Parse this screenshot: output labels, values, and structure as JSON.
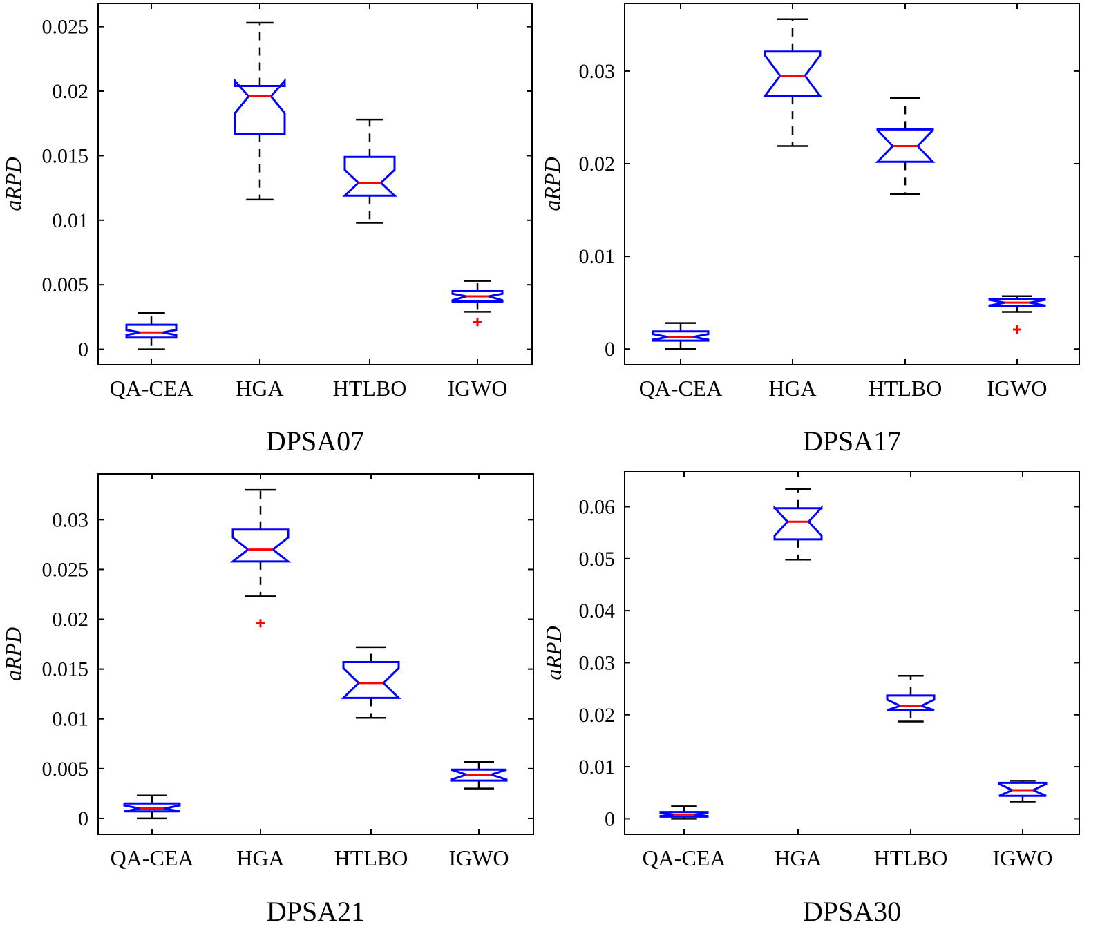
{
  "chart_data": [
    {
      "type": "boxplot",
      "title": "DPSA07",
      "ylabel": "aRPD",
      "xlabel": "",
      "ylim": [
        -0.0012,
        0.0268
      ],
      "yticks": [
        0,
        0.005,
        0.01,
        0.015,
        0.02,
        0.025
      ],
      "ytick_labels": [
        "0",
        "0.005",
        "0.01",
        "0.015",
        "0.02",
        "0.025"
      ],
      "categories": [
        "QA-CEA",
        "HGA",
        "HTLBO",
        "IGWO"
      ],
      "boxes": [
        {
          "name": "QA-CEA",
          "whisker_low": 0.0,
          "q1": 0.0009,
          "median": 0.0013,
          "q3": 0.0019,
          "whisker_high": 0.0028,
          "notch_low": 0.0011,
          "notch_high": 0.0015,
          "outliers": []
        },
        {
          "name": "HGA",
          "whisker_low": 0.0116,
          "q1": 0.0167,
          "median": 0.0196,
          "q3": 0.0204,
          "whisker_high": 0.0253,
          "notch_low": 0.0183,
          "notch_high": 0.0208,
          "outliers": []
        },
        {
          "name": "HTLBO",
          "whisker_low": 0.0098,
          "q1": 0.0119,
          "median": 0.0129,
          "q3": 0.0149,
          "whisker_high": 0.0178,
          "notch_low": 0.0119,
          "notch_high": 0.0139,
          "outliers": []
        },
        {
          "name": "IGWO",
          "whisker_low": 0.0029,
          "q1": 0.0037,
          "median": 0.0041,
          "q3": 0.0045,
          "whisker_high": 0.0053,
          "notch_low": 0.0038,
          "notch_high": 0.0043,
          "outliers": [
            0.0021
          ]
        }
      ]
    },
    {
      "type": "boxplot",
      "title": "DPSA17",
      "ylabel": "aRPD",
      "xlabel": "",
      "ylim": [
        -0.0017,
        0.0373
      ],
      "yticks": [
        0,
        0.01,
        0.02,
        0.03
      ],
      "ytick_labels": [
        "0",
        "0.01",
        "0.02",
        "0.03"
      ],
      "categories": [
        "QA-CEA",
        "HGA",
        "HTLBO",
        "IGWO"
      ],
      "boxes": [
        {
          "name": "QA-CEA",
          "whisker_low": 0.0,
          "q1": 0.0009,
          "median": 0.0013,
          "q3": 0.0019,
          "whisker_high": 0.0028,
          "notch_low": 0.001,
          "notch_high": 0.0016,
          "outliers": []
        },
        {
          "name": "HGA",
          "whisker_low": 0.0219,
          "q1": 0.0273,
          "median": 0.0295,
          "q3": 0.0321,
          "whisker_high": 0.0356,
          "notch_low": 0.0273,
          "notch_high": 0.0317,
          "outliers": []
        },
        {
          "name": "HTLBO",
          "whisker_low": 0.0167,
          "q1": 0.0202,
          "median": 0.0219,
          "q3": 0.0237,
          "whisker_high": 0.0271,
          "notch_low": 0.0202,
          "notch_high": 0.0236,
          "outliers": []
        },
        {
          "name": "IGWO",
          "whisker_low": 0.004,
          "q1": 0.0046,
          "median": 0.005,
          "q3": 0.0054,
          "whisker_high": 0.0057,
          "notch_low": 0.0047,
          "notch_high": 0.0053,
          "outliers": [
            0.0021
          ]
        }
      ]
    },
    {
      "type": "boxplot",
      "title": "DPSA21",
      "ylabel": "aRPD",
      "xlabel": "",
      "ylim": [
        -0.0016,
        0.0346
      ],
      "yticks": [
        0,
        0.005,
        0.01,
        0.015,
        0.02,
        0.025,
        0.03
      ],
      "ytick_labels": [
        "0",
        "0.005",
        "0.01",
        "0.015",
        "0.02",
        "0.025",
        "0.03"
      ],
      "categories": [
        "QA-CEA",
        "HGA",
        "HTLBO",
        "IGWO"
      ],
      "boxes": [
        {
          "name": "QA-CEA",
          "whisker_low": 0.0,
          "q1": 0.0007,
          "median": 0.001,
          "q3": 0.0015,
          "whisker_high": 0.0023,
          "notch_low": 0.0007,
          "notch_high": 0.0013,
          "outliers": []
        },
        {
          "name": "HGA",
          "whisker_low": 0.0223,
          "q1": 0.0258,
          "median": 0.027,
          "q3": 0.029,
          "whisker_high": 0.033,
          "notch_low": 0.0258,
          "notch_high": 0.0282,
          "outliers": [
            0.0196
          ]
        },
        {
          "name": "HTLBO",
          "whisker_low": 0.0101,
          "q1": 0.0121,
          "median": 0.0136,
          "q3": 0.0157,
          "whisker_high": 0.0172,
          "notch_low": 0.0121,
          "notch_high": 0.0151,
          "outliers": []
        },
        {
          "name": "IGWO",
          "whisker_low": 0.003,
          "q1": 0.0038,
          "median": 0.0044,
          "q3": 0.0049,
          "whisker_high": 0.0057,
          "notch_low": 0.0039,
          "notch_high": 0.0049,
          "outliers": []
        }
      ]
    },
    {
      "type": "boxplot",
      "title": "DPSA30",
      "ylabel": "aRPD",
      "xlabel": "",
      "ylim": [
        -0.003,
        0.0667
      ],
      "yticks": [
        0,
        0.01,
        0.02,
        0.03,
        0.04,
        0.05,
        0.06
      ],
      "ytick_labels": [
        "0",
        "0.01",
        "0.02",
        "0.03",
        "0.04",
        "0.05",
        "0.06"
      ],
      "categories": [
        "QA-CEA",
        "HGA",
        "HTLBO",
        "IGWO"
      ],
      "boxes": [
        {
          "name": "QA-CEA",
          "whisker_low": 0.0,
          "q1": 0.0004,
          "median": 0.0008,
          "q3": 0.0013,
          "whisker_high": 0.0024,
          "notch_low": 0.0005,
          "notch_high": 0.0011,
          "outliers": []
        },
        {
          "name": "HGA",
          "whisker_low": 0.0498,
          "q1": 0.0537,
          "median": 0.0571,
          "q3": 0.0597,
          "whisker_high": 0.0634,
          "notch_low": 0.0544,
          "notch_high": 0.0598,
          "outliers": []
        },
        {
          "name": "HTLBO",
          "whisker_low": 0.0187,
          "q1": 0.0209,
          "median": 0.0217,
          "q3": 0.0237,
          "whisker_high": 0.0275,
          "notch_low": 0.0209,
          "notch_high": 0.0229,
          "outliers": []
        },
        {
          "name": "IGWO",
          "whisker_low": 0.0033,
          "q1": 0.0044,
          "median": 0.0055,
          "q3": 0.0069,
          "whisker_high": 0.0073,
          "notch_low": 0.0044,
          "notch_high": 0.0067,
          "outliers": []
        }
      ]
    }
  ],
  "colors": {
    "box": "#0000ff",
    "median": "#ff0000",
    "whisker": "#000000",
    "outlier": "#ff0000",
    "axes": "#000000",
    "background": "#ffffff"
  }
}
